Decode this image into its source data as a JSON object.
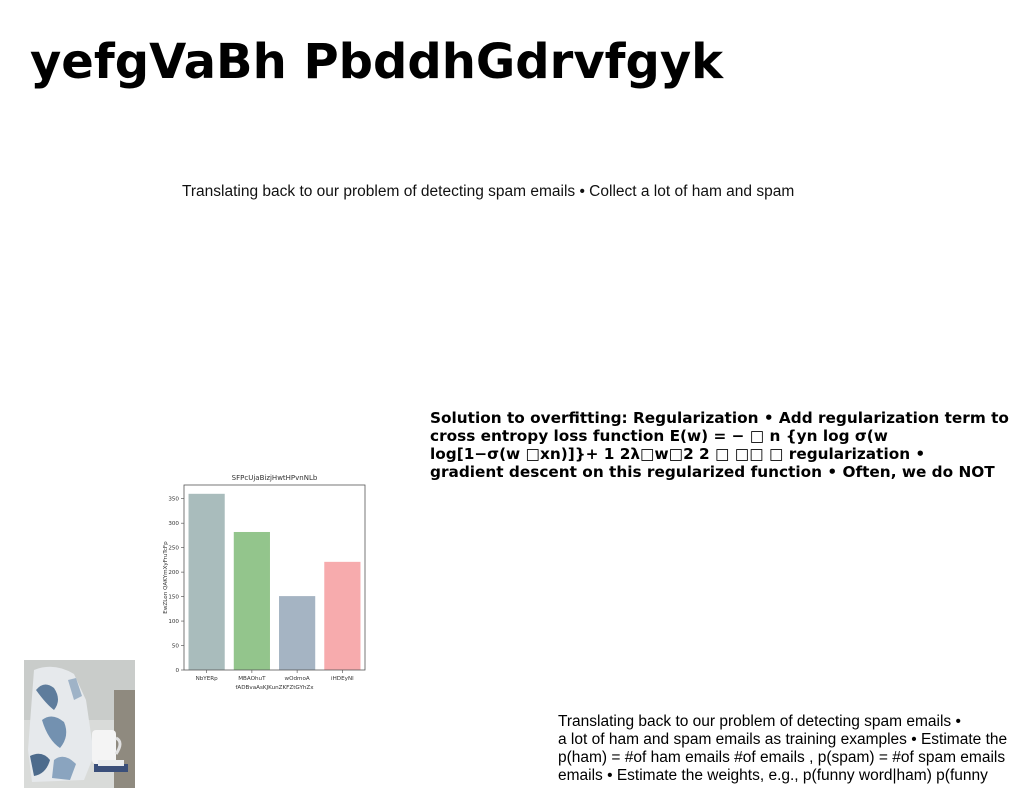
{
  "page": {
    "title": "yefgVaBh PbddhGdrvfgyk",
    "subtitle": "Translating back to our problem of detecting spam emails • Collect a lot of ham and spam"
  },
  "regularization_block": {
    "lines": [
      "Solution to overfitting: Regularization • Add regularization term to",
      "cross entropy loss function E(w) = − □ n {yn log σ(w",
      "log[1−σ(w □xn)]}+ 1 2λ□w□2 2 □ □□ □ regularization •",
      "gradient descent on this regularized function • Often, we do NOT"
    ]
  },
  "spam_block": {
    "lines": [
      "Translating back to our problem of detecting spam emails •",
      "a lot of ham and spam emails as training examples • Estimate the",
      "p(ham) = #of ham emails #of emails , p(spam) = #of spam emails",
      "emails • Estimate the weights, e.g., p(funny word|ham) p(funny"
    ]
  },
  "photo": {
    "description_icon": "mug-and-bag-photo"
  },
  "chart_data": {
    "type": "bar",
    "title": "SFPcUjaBizjHwtHPvnNLb",
    "xlabel": "fADBvaAsKJKunZKFZtGYhZx",
    "ylabel": "EwZLon QAKYmXyFruTcFp",
    "categories": [
      "NbYERp",
      "MBAOhuT",
      "wOdmoA",
      "iHDEyNl"
    ],
    "values": [
      360,
      282,
      151,
      221
    ],
    "colors": [
      "#a9bcbc",
      "#93c58c",
      "#a5b4c3",
      "#f7abad"
    ],
    "ylim": [
      0,
      378
    ],
    "yticks": [
      0,
      50,
      100,
      150,
      200,
      250,
      300,
      350
    ],
    "grid": false
  }
}
